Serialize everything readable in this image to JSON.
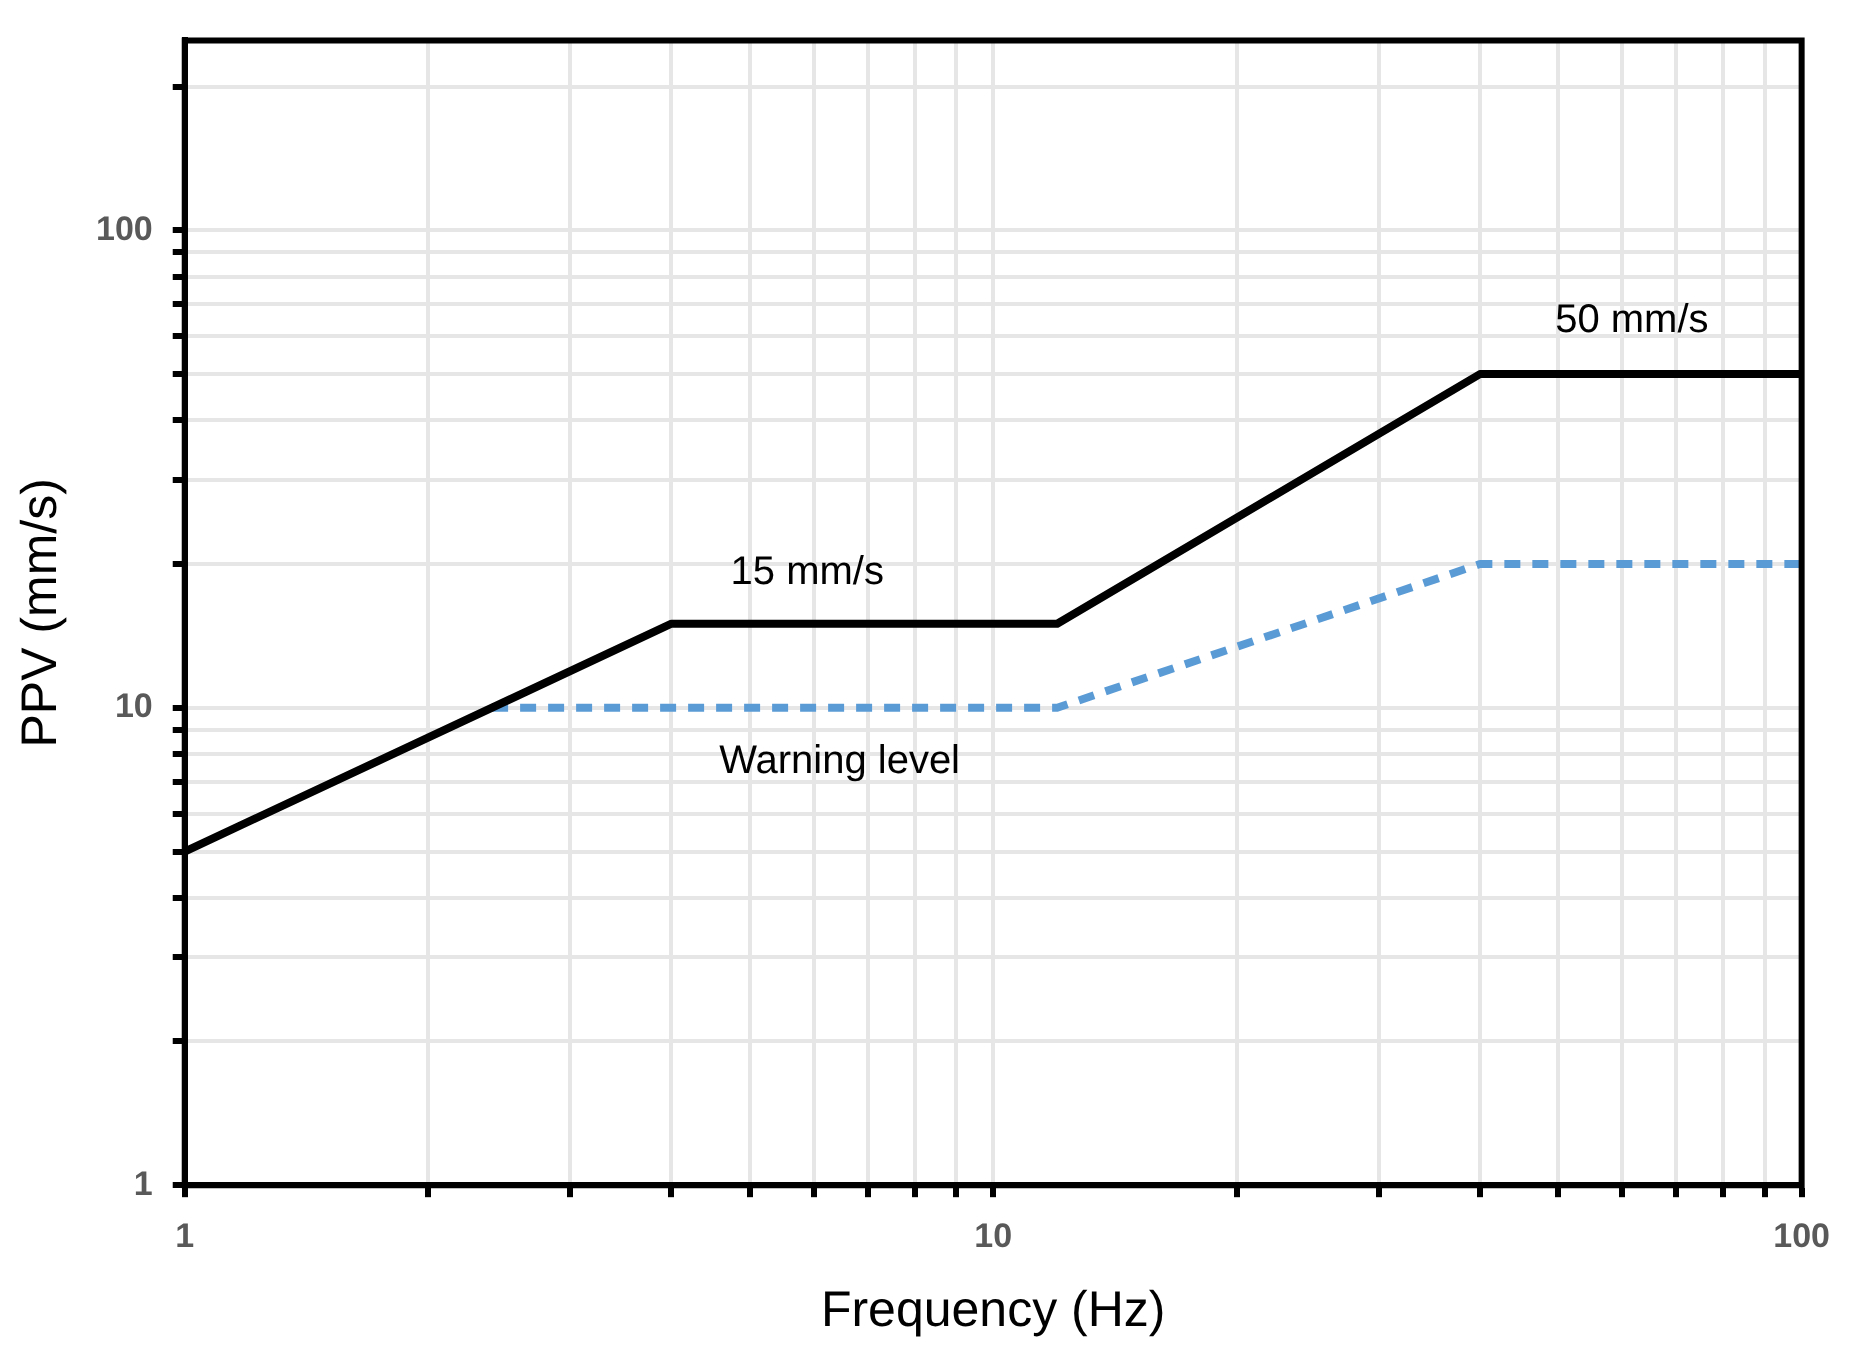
{
  "chart_data": {
    "type": "line",
    "xlabel": "Frequency (Hz)",
    "ylabel": "PPV (mm/s)",
    "log": "xy",
    "grid": true,
    "legend": false,
    "marker": "none",
    "xlim": [
      1,
      100
    ],
    "ylim": [
      1,
      250
    ],
    "xticks": [
      1,
      {
        "value": 2,
        "label": null
      },
      {
        "value": 3,
        "label": null
      },
      {
        "value": 4,
        "label": null
      },
      {
        "value": 5,
        "label": null
      },
      {
        "value": 6,
        "label": null
      },
      {
        "value": 7,
        "label": null
      },
      {
        "value": 8,
        "label": null
      },
      {
        "value": 9,
        "label": null
      },
      10,
      {
        "value": 20,
        "label": null
      },
      {
        "value": 30,
        "label": null
      },
      {
        "value": 40,
        "label": null
      },
      {
        "value": 50,
        "label": null
      },
      {
        "value": 60,
        "label": null
      },
      {
        "value": 70,
        "label": null
      },
      {
        "value": 80,
        "label": null
      },
      {
        "value": 90,
        "label": null
      },
      100
    ],
    "yticks": [
      1,
      {
        "value": 2,
        "label": null
      },
      {
        "value": 3,
        "label": null
      },
      {
        "value": 4,
        "label": null
      },
      {
        "value": 5,
        "label": null
      },
      {
        "value": 6,
        "label": null
      },
      {
        "value": 7,
        "label": null
      },
      {
        "value": 8,
        "label": null
      },
      {
        "value": 9,
        "label": null
      },
      10,
      {
        "value": 20,
        "label": null
      },
      {
        "value": 30,
        "label": null
      },
      {
        "value": 40,
        "label": null
      },
      {
        "value": 50,
        "label": null
      },
      {
        "value": 60,
        "label": null
      },
      {
        "value": 70,
        "label": null
      },
      {
        "value": 80,
        "label": null
      },
      {
        "value": 90,
        "label": null
      },
      100,
      {
        "value": 200,
        "label": null
      }
    ],
    "series": [
      {
        "color": "#000000",
        "line_style": "solid",
        "x": [
          1,
          4,
          12,
          40,
          100
        ],
        "values": [
          5,
          15,
          15,
          50,
          50
        ]
      },
      {
        "color": "#5b9bd5",
        "line_style": "dashed",
        "x": [
          2.4,
          12,
          40,
          100
        ],
        "values": [
          10,
          10,
          20,
          20
        ]
      }
    ],
    "annotations": [
      "15 mm/s",
      "50 mm/s",
      "Warning level"
    ]
  }
}
